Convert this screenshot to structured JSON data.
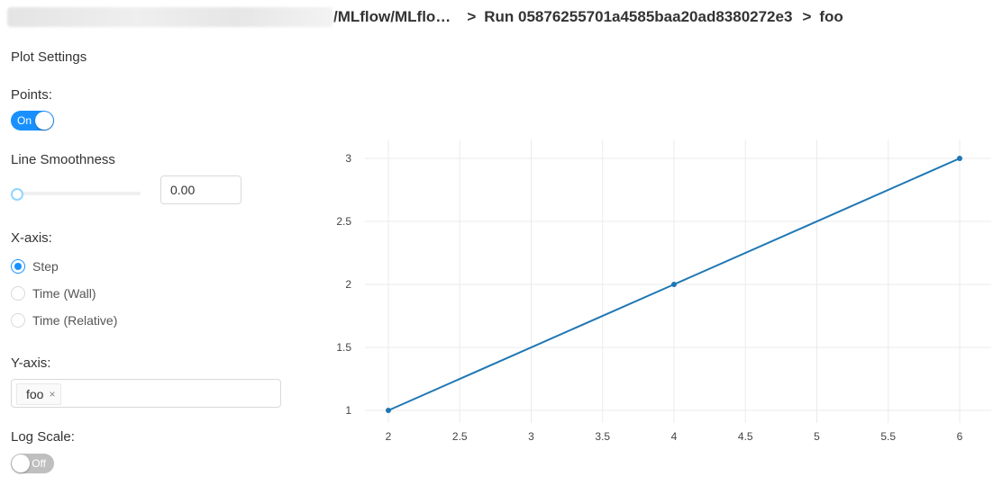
{
  "breadcrumb": {
    "path_visible": "/MLflow/MLflo…",
    "run": "Run 05876255701a4585baa20ad8380272e3",
    "metric": "foo",
    "separator": ">"
  },
  "settings": {
    "title": "Plot Settings",
    "points": {
      "label": "Points:",
      "toggle_text": "On",
      "enabled": true
    },
    "smoothness": {
      "label": "Line Smoothness",
      "value": "0.00",
      "slider_level": 0
    },
    "x_axis": {
      "label": "X-axis:",
      "options": [
        "Step",
        "Time (Wall)",
        "Time (Relative)"
      ],
      "selected": "Step"
    },
    "y_axis": {
      "label": "Y-axis:",
      "selected_tags": [
        "foo"
      ],
      "tag_close": "×"
    },
    "log_scale": {
      "label": "Log Scale:",
      "toggle_text": "Off",
      "enabled": false
    }
  },
  "colors": {
    "accent": "#1890ff",
    "line": "#1f77b4",
    "grid": "#ebebeb"
  },
  "chart_data": {
    "type": "line",
    "series": [
      {
        "x": [
          2,
          4,
          6
        ],
        "y": [
          1,
          2,
          3
        ]
      }
    ],
    "xlim": [
      2,
      6
    ],
    "ylim": [
      1,
      3
    ],
    "x_ticks": [
      "2",
      "2.5",
      "3",
      "3.5",
      "4",
      "4.5",
      "5",
      "5.5",
      "6"
    ],
    "y_ticks": [
      "1",
      "1.5",
      "2",
      "2.5",
      "3"
    ],
    "markers": true,
    "grid": true,
    "title": "",
    "xlabel": "",
    "ylabel": ""
  }
}
